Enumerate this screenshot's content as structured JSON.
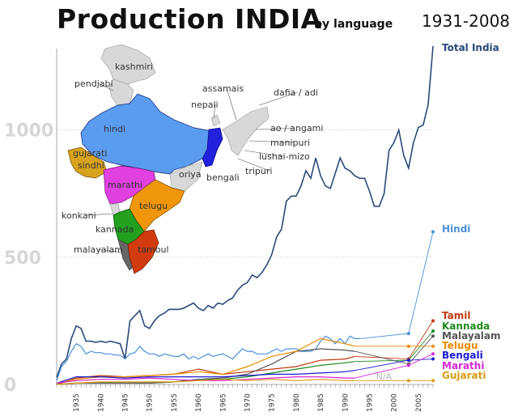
{
  "header": {
    "title": "Production INDIA",
    "subtitle": "by language",
    "period": "1931-2008"
  },
  "map": {
    "regions": [
      {
        "key": "kashmiri",
        "label": "kashmiri",
        "color": "#d8d8d8"
      },
      {
        "key": "pendjabi",
        "label": "pendjabi",
        "color": "#d8d8d8"
      },
      {
        "key": "hindi",
        "label": "hindi",
        "color": "#5a9cf0"
      },
      {
        "key": "gujarati",
        "label": "gujarati",
        "color": "#d9a21b"
      },
      {
        "key": "sindhi",
        "label": "sindhi",
        "color": "#d9a21b"
      },
      {
        "key": "marathi",
        "label": "marathi",
        "color": "#e040e0"
      },
      {
        "key": "telugu",
        "label": "telugu",
        "color": "#f0960a"
      },
      {
        "key": "konkani",
        "label": "konkani",
        "color": "#d8d8d8"
      },
      {
        "key": "kannada",
        "label": "kannada",
        "color": "#22a01e"
      },
      {
        "key": "malayalam",
        "label": "malayalam",
        "color": "#666666"
      },
      {
        "key": "tamoul",
        "label": "tamoul",
        "color": "#d23a10"
      },
      {
        "key": "oriya",
        "label": "oriya",
        "color": "#d8d8d8"
      },
      {
        "key": "bengali",
        "label": "bengali",
        "color": "#2222dd"
      },
      {
        "key": "nepali",
        "label": "nepali",
        "color": "#d8d8d8"
      },
      {
        "key": "assamais",
        "label": "assamais",
        "color": "#d8d8d8"
      },
      {
        "key": "dafia",
        "label": "dafia / adi",
        "color": "#d8d8d8"
      },
      {
        "key": "ao",
        "label": "ao / angami",
        "color": "#d8d8d8"
      },
      {
        "key": "manipuri",
        "label": "manipuri",
        "color": "#d8d8d8"
      },
      {
        "key": "lushai",
        "label": "lushai-mizo",
        "color": "#d8d8d8"
      },
      {
        "key": "tripuri",
        "label": "tripuri",
        "color": "#d8d8d8"
      }
    ]
  },
  "chart_data": {
    "type": "line",
    "title": "Production INDIA",
    "subtitle": "by language",
    "period_label": "1931-2008",
    "xlim": [
      1931,
      2008
    ],
    "ylim": [
      0,
      1320
    ],
    "yticks": [
      0,
      500,
      1000
    ],
    "xticks": [
      1935,
      1940,
      1945,
      1950,
      1955,
      1960,
      1965,
      1970,
      1975,
      1980,
      1985,
      1990,
      1995,
      2000,
      2005
    ],
    "grid": "horizontal dotted at 500 and 1000",
    "legend": "right, in order of final value",
    "na_label": "N/A",
    "na_range": [
      1993,
      2003
    ],
    "series": [
      {
        "name": "Total India",
        "color": "#2a4a7a",
        "years": [
          1931,
          1932,
          1933,
          1934,
          1935,
          1936,
          1937,
          1938,
          1939,
          1940,
          1941,
          1942,
          1943,
          1944,
          1945,
          1946,
          1947,
          1948,
          1949,
          1950,
          1951,
          1952,
          1953,
          1954,
          1955,
          1956,
          1957,
          1958,
          1959,
          1960,
          1961,
          1962,
          1963,
          1964,
          1965,
          1966,
          1967,
          1968,
          1969,
          1970,
          1971,
          1972,
          1973,
          1974,
          1975,
          1976,
          1977,
          1978,
          1979,
          1980,
          1981,
          1982,
          1983,
          1984,
          1985,
          1986,
          1987,
          1988,
          1989,
          1990,
          1991,
          1992,
          1993,
          1994,
          1995,
          1996,
          1997,
          1998,
          1999,
          2000,
          2001,
          2002,
          2003,
          2004,
          2005,
          2006,
          2007,
          2008
        ],
        "values": [
          28,
          80,
          100,
          180,
          230,
          220,
          170,
          170,
          165,
          170,
          165,
          170,
          165,
          160,
          100,
          250,
          270,
          290,
          230,
          220,
          250,
          270,
          280,
          295,
          295,
          295,
          300,
          310,
          320,
          300,
          290,
          310,
          300,
          320,
          315,
          330,
          340,
          370,
          390,
          400,
          430,
          420,
          440,
          470,
          510,
          580,
          610,
          720,
          740,
          740,
          780,
          840,
          810,
          890,
          820,
          780,
          770,
          830,
          890,
          850,
          840,
          820,
          810,
          810,
          760,
          700,
          700,
          750,
          920,
          950,
          1000,
          900,
          850,
          950,
          1010,
          1020,
          1100,
          1330
        ],
        "dashed_after": null
      },
      {
        "name": "Hindi",
        "color": "#4a90d9",
        "years": [
          1931,
          1932,
          1933,
          1934,
          1935,
          1936,
          1937,
          1938,
          1939,
          1940,
          1941,
          1942,
          1943,
          1944,
          1945,
          1946,
          1947,
          1948,
          1949,
          1950,
          1951,
          1952,
          1953,
          1954,
          1955,
          1956,
          1957,
          1958,
          1959,
          1960,
          1961,
          1962,
          1963,
          1964,
          1965,
          1966,
          1967,
          1968,
          1969,
          1970,
          1971,
          1972,
          1973,
          1974,
          1975,
          1976,
          1977,
          1978,
          1979,
          1980,
          1981,
          1982,
          1983,
          1984,
          1985,
          1986,
          1987,
          1988,
          1989,
          1990,
          1991,
          1992,
          1993,
          2003,
          2008
        ],
        "values": [
          15,
          70,
          90,
          130,
          160,
          150,
          120,
          130,
          125,
          125,
          120,
          120,
          115,
          115,
          100,
          120,
          125,
          150,
          130,
          120,
          120,
          110,
          120,
          115,
          110,
          110,
          120,
          100,
          110,
          100,
          110,
          120,
          110,
          115,
          120,
          110,
          100,
          120,
          140,
          130,
          130,
          120,
          120,
          120,
          130,
          140,
          130,
          140,
          140,
          140,
          130,
          130,
          130,
          140,
          170,
          190,
          180,
          160,
          180,
          160,
          190,
          180,
          180,
          200,
          600
        ],
        "dashed_after": 1993
      },
      {
        "name": "Tamil",
        "color": "#c0390b",
        "years": [
          1931,
          1935,
          1940,
          1945,
          1950,
          1955,
          1960,
          1965,
          1970,
          1975,
          1980,
          1985,
          1990,
          1992,
          2003,
          2008
        ],
        "values": [
          0,
          25,
          35,
          30,
          35,
          40,
          60,
          40,
          50,
          60,
          70,
          95,
          100,
          110,
          100,
          250
        ],
        "dashed_after": 1992
      },
      {
        "name": "Kannada",
        "color": "#1e8a1e",
        "years": [
          1931,
          1935,
          1940,
          1945,
          1950,
          1955,
          1960,
          1965,
          1970,
          1975,
          1980,
          1985,
          1990,
          1992,
          2003,
          2008
        ],
        "values": [
          0,
          5,
          5,
          5,
          5,
          10,
          20,
          20,
          30,
          45,
          60,
          75,
          85,
          90,
          95,
          210
        ],
        "dashed_after": 1992
      },
      {
        "name": "Malayalam",
        "color": "#555555",
        "years": [
          1931,
          1935,
          1940,
          1945,
          1950,
          1955,
          1960,
          1965,
          1970,
          1975,
          1980,
          1985,
          1990,
          1992,
          2003,
          2008
        ],
        "values": [
          0,
          5,
          5,
          5,
          5,
          10,
          20,
          25,
          40,
          80,
          130,
          140,
          135,
          130,
          80,
          190
        ],
        "dashed_after": 1992
      },
      {
        "name": "Telugu",
        "color": "#ee8a00",
        "years": [
          1931,
          1935,
          1940,
          1945,
          1950,
          1955,
          1960,
          1965,
          1970,
          1975,
          1980,
          1985,
          1990,
          1992,
          2003,
          2008
        ],
        "values": [
          5,
          20,
          30,
          30,
          35,
          40,
          50,
          40,
          70,
          110,
          130,
          180,
          160,
          150,
          150,
          150
        ],
        "dashed_after": 1992
      },
      {
        "name": "Bengali",
        "color": "#1a1ad4",
        "years": [
          1931,
          1935,
          1940,
          1945,
          1950,
          1955,
          1960,
          1965,
          1970,
          1975,
          1980,
          1985,
          1990,
          1992,
          2003,
          2008
        ],
        "values": [
          5,
          30,
          30,
          25,
          30,
          30,
          30,
          30,
          35,
          40,
          40,
          45,
          50,
          55,
          95,
          100
        ],
        "dashed_after": 1992
      },
      {
        "name": "Marathi",
        "color": "#d628d6",
        "years": [
          1931,
          1935,
          1940,
          1945,
          1950,
          1955,
          1960,
          1965,
          1970,
          1975,
          1980,
          1985,
          1990,
          1992,
          2003,
          2008
        ],
        "values": [
          5,
          15,
          20,
          20,
          25,
          20,
          15,
          15,
          20,
          25,
          30,
          30,
          25,
          25,
          75,
          120
        ],
        "dashed_after": 1992
      },
      {
        "name": "Gujarati",
        "color": "#d99b12",
        "years": [
          1931,
          1935,
          1940,
          1945,
          1950,
          1955,
          1960,
          1965,
          1970,
          1975,
          1980,
          1985,
          1990,
          1992,
          2003,
          2008
        ],
        "values": [
          0,
          5,
          10,
          10,
          10,
          10,
          15,
          20,
          15,
          20,
          15,
          20,
          15,
          15,
          15,
          15
        ],
        "dashed_after": 1992
      }
    ]
  }
}
